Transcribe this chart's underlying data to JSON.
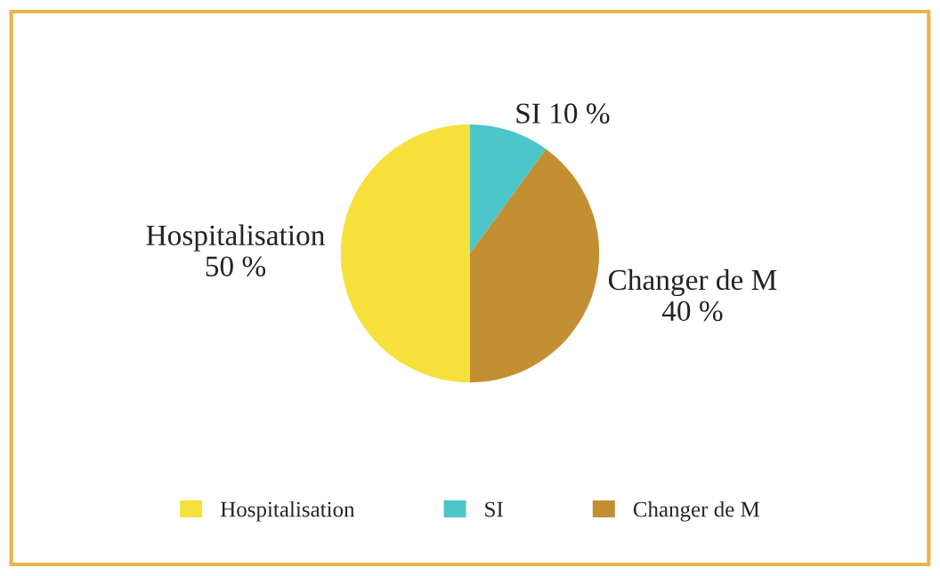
{
  "chart_data": {
    "type": "pie",
    "categories": [
      "Hospitalisation",
      "SI",
      "Changer de M"
    ],
    "values": [
      50,
      10,
      40
    ],
    "colors": [
      "#f6e03c",
      "#4cc6c8",
      "#c48e32"
    ],
    "value_labels": [
      "50 %",
      "10 %",
      "40 %"
    ],
    "legend": "bottom"
  }
}
